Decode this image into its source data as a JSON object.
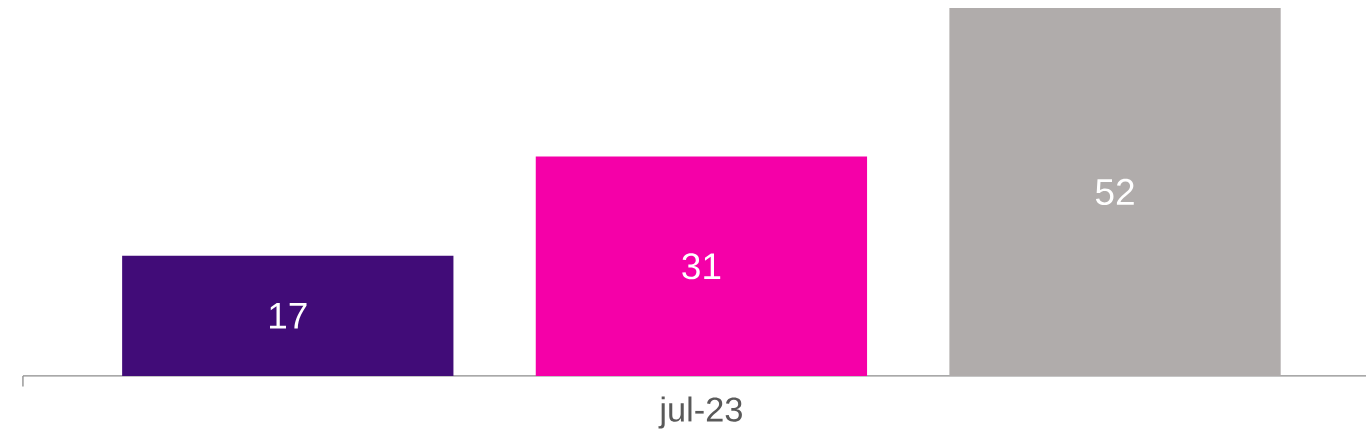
{
  "chart_data": {
    "type": "bar",
    "categories": [
      null,
      "jul-23",
      null
    ],
    "values": [
      17,
      31,
      52
    ],
    "colors": [
      "#410c78",
      "#f500a8",
      "#b0acab"
    ],
    "data_labels": true
  }
}
